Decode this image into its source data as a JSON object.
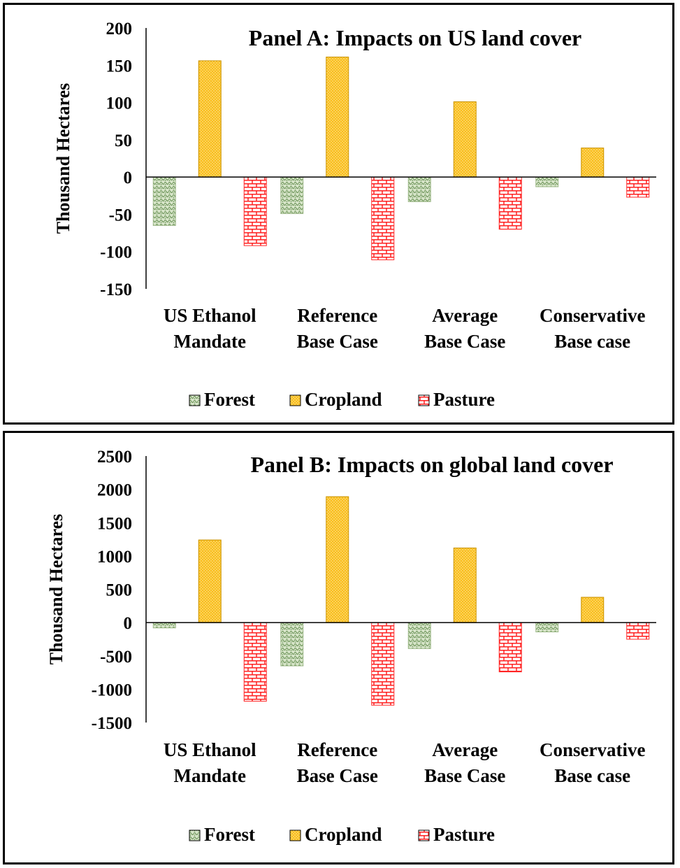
{
  "chart_data": [
    {
      "type": "bar",
      "title": "Panel A: Impacts on US land cover",
      "ylabel": "Thousand Hectares",
      "xlabel": "",
      "categories": [
        [
          "US Ethanol",
          "Mandate"
        ],
        [
          "Reference",
          "Base Case"
        ],
        [
          "Average",
          "Base Case"
        ],
        [
          "Conservative",
          "Base case"
        ]
      ],
      "ylim": [
        -150,
        200
      ],
      "yticks": [
        200,
        150,
        100,
        50,
        0,
        -50,
        -100,
        -150
      ],
      "grid": false,
      "legend": "bottom",
      "series": [
        {
          "name": "Forest",
          "values": [
            -65,
            -49,
            -33,
            -13
          ],
          "color": "#9fb98a",
          "pattern": "forest"
        },
        {
          "name": "Cropland",
          "values": [
            156,
            161,
            101,
            39
          ],
          "color": "#f7b718",
          "pattern": "crop"
        },
        {
          "name": "Pasture",
          "values": [
            -92,
            -111,
            -70,
            -27
          ],
          "color": "#ff2a2a",
          "pattern": "pasture"
        }
      ]
    },
    {
      "type": "bar",
      "title": "Panel B: Impacts on global land cover",
      "ylabel": "Thousand Hectares",
      "xlabel": "",
      "categories": [
        [
          "US Ethanol",
          "Mandate"
        ],
        [
          "Reference",
          "Base Case"
        ],
        [
          "Average",
          "Base Case"
        ],
        [
          "Conservative",
          "Base case"
        ]
      ],
      "ylim": [
        -1500,
        2500
      ],
      "yticks": [
        2500,
        2000,
        1500,
        1000,
        500,
        0,
        -500,
        -1000,
        -1500
      ],
      "grid": false,
      "legend": "bottom",
      "series": [
        {
          "name": "Forest",
          "values": [
            -80,
            -650,
            -390,
            -140
          ],
          "color": "#9fb98a",
          "pattern": "forest"
        },
        {
          "name": "Cropland",
          "values": [
            1240,
            1890,
            1120,
            380
          ],
          "color": "#f7b718",
          "pattern": "crop"
        },
        {
          "name": "Pasture",
          "values": [
            -1180,
            -1240,
            -740,
            -250
          ],
          "color": "#ff2a2a",
          "pattern": "pasture"
        }
      ]
    }
  ]
}
